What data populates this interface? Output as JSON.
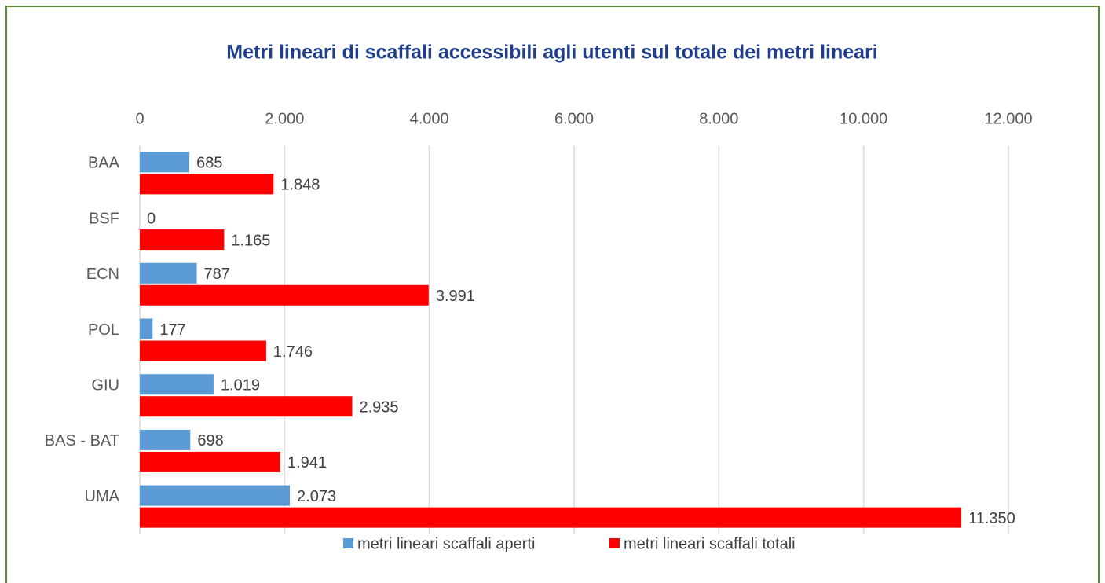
{
  "chart_data": {
    "type": "hbar",
    "title": "Metri lineari di scaffali accessibili agli utenti sul totale dei metri lineari",
    "categories": [
      "BAA",
      "BSF",
      "ECN",
      "POL",
      "GIU",
      "BAS - BAT",
      "UMA"
    ],
    "series": [
      {
        "name": "metri lineari scaffali aperti",
        "color": "#5b9bd5",
        "values": [
          685,
          0,
          787,
          177,
          1019,
          698,
          2073
        ],
        "value_labels": [
          "685",
          "0",
          "787",
          "177",
          "1.019",
          "698",
          "2.073"
        ]
      },
      {
        "name": "metri lineari scaffali totali",
        "color": "#ff0000",
        "values": [
          1848,
          1165,
          3991,
          1746,
          2935,
          1941,
          11350
        ],
        "value_labels": [
          "1.848",
          "1.165",
          "3.991",
          "1.746",
          "2.935",
          "1.941",
          "11.350"
        ]
      }
    ],
    "xlim": [
      0,
      12000
    ],
    "xticks": [
      0,
      {
        "value": 2000,
        "label": "2.000"
      },
      {
        "value": 4000,
        "label": "4.000"
      },
      {
        "value": 6000,
        "label": "6.000"
      },
      {
        "value": 8000,
        "label": "8.000"
      },
      {
        "value": 10000,
        "label": "10.000"
      },
      {
        "value": 12000,
        "label": "12.000"
      }
    ],
    "grid": true,
    "legend": "bottom"
  }
}
